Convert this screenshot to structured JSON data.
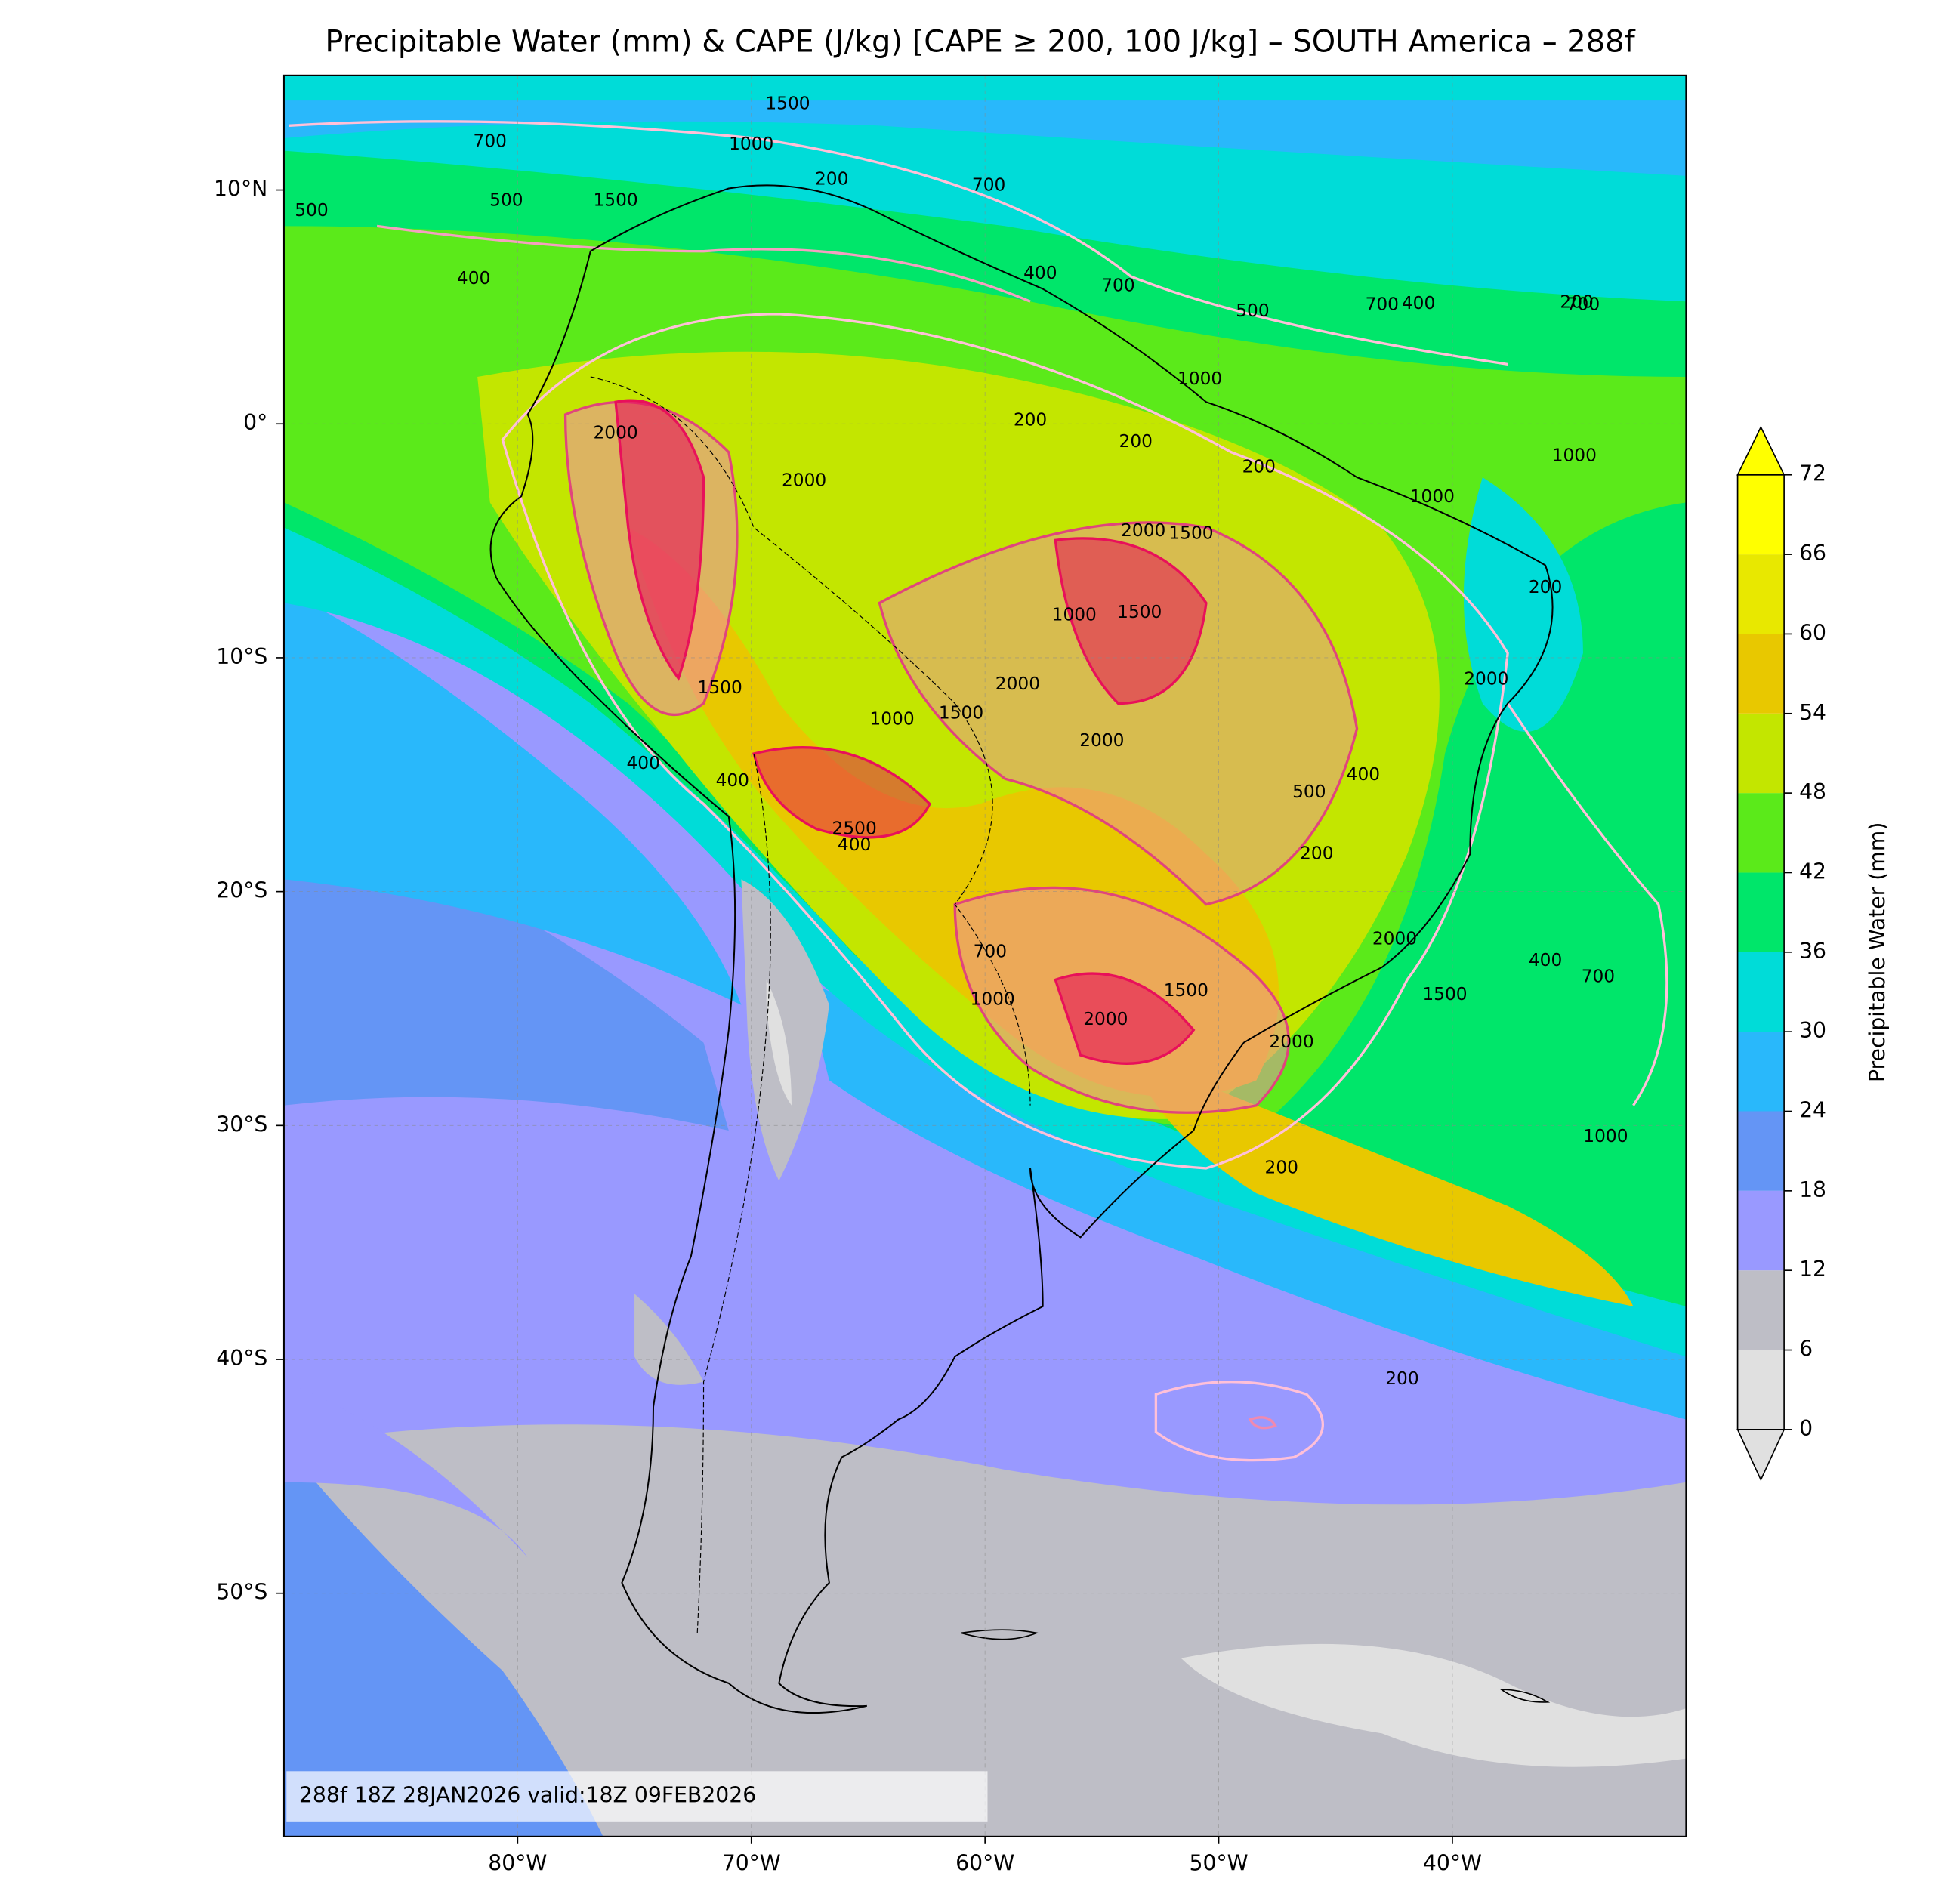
{
  "chart_data": {
    "type": "map",
    "title": "Precipitable Water (mm) & CAPE (J/kg) [CAPE ≥ 200, 100 J/kg] – SOUTH America – 288f",
    "xlim": [
      -90,
      -30
    ],
    "ylim": [
      -60.4,
      14.9
    ],
    "xticks": [
      {
        "value": -80,
        "label": "80°W"
      },
      {
        "value": -70,
        "label": "70°W"
      },
      {
        "value": -60,
        "label": "60°W"
      },
      {
        "value": -50,
        "label": "50°W"
      },
      {
        "value": -40,
        "label": "40°W"
      }
    ],
    "yticks": [
      {
        "value": 10,
        "label": "10°N"
      },
      {
        "value": 0,
        "label": "0°"
      },
      {
        "value": -10,
        "label": "10°S"
      },
      {
        "value": -20,
        "label": "20°S"
      },
      {
        "value": -30,
        "label": "30°S"
      },
      {
        "value": -40,
        "label": "40°S"
      },
      {
        "value": -50,
        "label": "50°S"
      }
    ],
    "grid": true,
    "colorbar": {
      "label": "Precipitable Water (mm)",
      "levels": [
        0,
        6,
        12,
        18,
        24,
        30,
        36,
        42,
        48,
        54,
        60,
        66,
        72
      ],
      "colors": [
        "#e0e0e0",
        "#bebec6",
        "#9999ff",
        "#6495f5",
        "#29b8fb",
        "#00dcd8",
        "#00e66a",
        "#5bea1a",
        "#c3e600",
        "#e8c800",
        "#e8e800",
        "#ffff00"
      ],
      "under_color": "#e0e0e0",
      "over_color": "#ffff00",
      "extend": "both"
    },
    "contour_labels": [
      1500,
      1000,
      200,
      700,
      500,
      700,
      400,
      500,
      1500,
      200,
      700,
      400,
      700,
      500,
      700,
      400,
      200,
      1000,
      200,
      200,
      1000,
      2000,
      2000,
      1500,
      1000,
      2000,
      1500,
      2000,
      2000,
      1000,
      1500,
      1500,
      2500,
      400,
      400,
      400,
      500,
      200,
      400,
      1000,
      2000,
      2000,
      1500,
      2000,
      1000,
      700,
      2000,
      1500,
      200,
      1000,
      200,
      200,
      400,
      700
    ],
    "annotation": "288f 18Z 28JAN2026 valid:18Z 09FEB2026"
  }
}
